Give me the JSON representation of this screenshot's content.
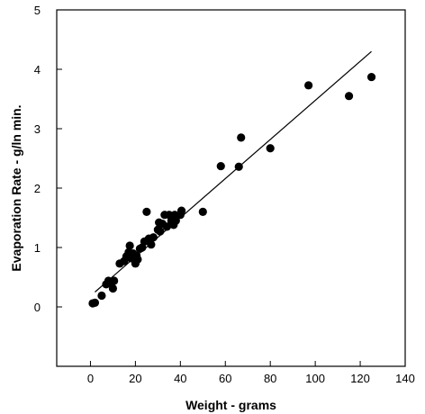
{
  "chart_data": {
    "type": "scatter",
    "title": "",
    "xlabel": "Weight - grams",
    "ylabel": "Evaporation Rate - g/ln min.",
    "xlim": [
      -15,
      140
    ],
    "ylim": [
      -1,
      5
    ],
    "x_ticks": [
      0,
      20,
      40,
      60,
      80,
      100,
      120,
      140
    ],
    "y_ticks": [
      0,
      1,
      2,
      3,
      4,
      5
    ],
    "grid": false,
    "legend": "none",
    "colors": {
      "points": "#000000",
      "line": "#000000",
      "axes": "#000000"
    },
    "series": [
      {
        "points": [
          [
            1,
            0.06
          ],
          [
            2,
            0.07
          ],
          [
            5,
            0.19
          ],
          [
            7,
            0.38
          ],
          [
            8,
            0.44
          ],
          [
            9,
            0.4
          ],
          [
            10,
            0.31
          ],
          [
            10.5,
            0.44
          ],
          [
            13,
            0.73
          ],
          [
            15,
            0.77
          ],
          [
            16,
            0.85
          ],
          [
            17,
            0.92
          ],
          [
            17.5,
            1.03
          ],
          [
            18,
            0.82
          ],
          [
            19,
            0.9
          ],
          [
            20,
            0.73
          ],
          [
            20.5,
            0.86
          ],
          [
            21,
            0.8
          ],
          [
            22,
            0.98
          ],
          [
            23,
            1.0
          ],
          [
            24,
            1.1
          ],
          [
            25,
            1.6
          ],
          [
            26,
            1.15
          ],
          [
            27,
            1.05
          ],
          [
            28,
            1.17
          ],
          [
            30,
            1.3
          ],
          [
            30.5,
            1.42
          ],
          [
            31,
            1.27
          ],
          [
            32,
            1.4
          ],
          [
            33,
            1.55
          ],
          [
            34,
            1.35
          ],
          [
            35,
            1.55
          ],
          [
            36,
            1.45
          ],
          [
            37,
            1.38
          ],
          [
            37.5,
            1.55
          ],
          [
            38,
            1.45
          ],
          [
            40,
            1.55
          ],
          [
            40.5,
            1.62
          ],
          [
            50,
            1.6
          ],
          [
            58,
            2.37
          ],
          [
            66,
            2.36
          ],
          [
            67,
            2.85
          ],
          [
            80,
            2.67
          ],
          [
            97,
            3.73
          ],
          [
            115,
            3.55
          ],
          [
            125,
            3.87
          ]
        ]
      }
    ],
    "fit_line": {
      "x": [
        2,
        125
      ],
      "y": [
        0.25,
        4.3
      ]
    }
  }
}
